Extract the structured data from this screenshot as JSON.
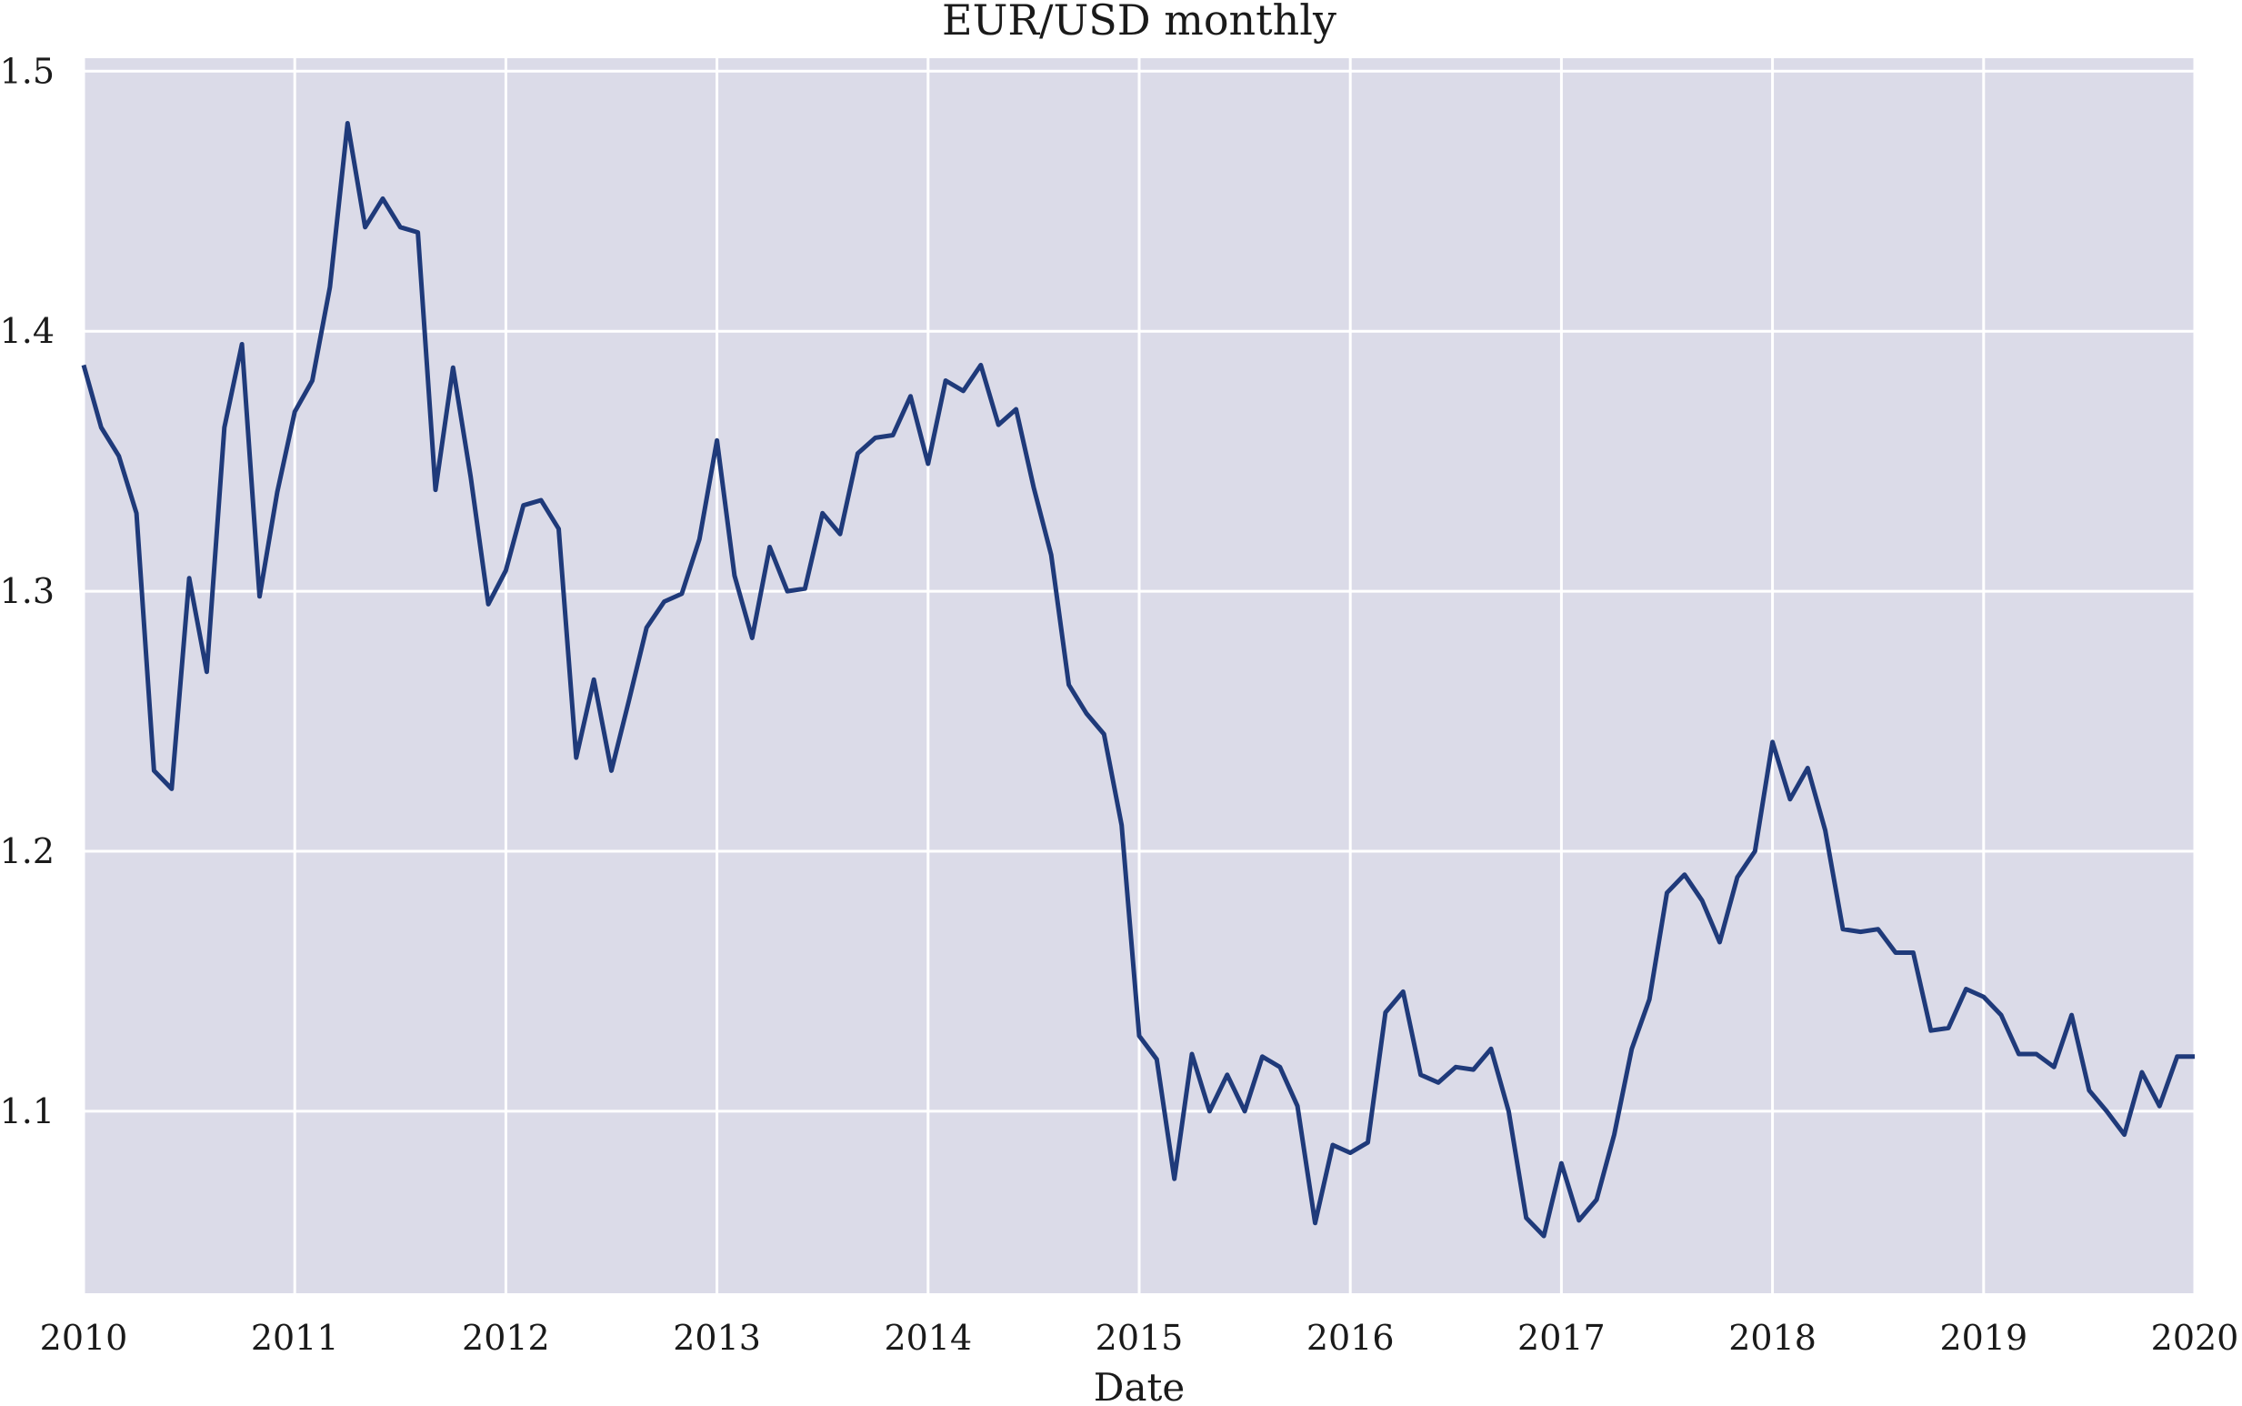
{
  "chart_data": {
    "type": "line",
    "title": "EUR/USD monthly",
    "xlabel": "Date",
    "ylabel": "",
    "grid": true,
    "legend": "none",
    "xlim": [
      2010,
      2020
    ],
    "ylim": [
      1.03,
      1.505
    ],
    "x_ticks": [
      "2010",
      "2011",
      "2012",
      "2013",
      "2014",
      "2015",
      "2016",
      "2017",
      "2018",
      "2019",
      "2020"
    ],
    "y_ticks": [
      "1.1",
      "1.2",
      "1.3",
      "1.4",
      "1.5"
    ],
    "colors": {
      "line": "#1f3a7a",
      "plot_bg": "#dbdbe8",
      "grid": "#ffffff"
    },
    "series": [
      {
        "start": "2010-01",
        "frequency": "monthly",
        "values": [
          1.387,
          1.363,
          1.352,
          1.33,
          1.231,
          1.224,
          1.305,
          1.269,
          1.363,
          1.395,
          1.298,
          1.338,
          1.369,
          1.381,
          1.417,
          1.48,
          1.44,
          1.451,
          1.44,
          1.438,
          1.339,
          1.386,
          1.344,
          1.295,
          1.308,
          1.333,
          1.335,
          1.324,
          1.236,
          1.266,
          1.231,
          1.258,
          1.286,
          1.296,
          1.299,
          1.32,
          1.358,
          1.306,
          1.282,
          1.317,
          1.3,
          1.301,
          1.33,
          1.322,
          1.353,
          1.359,
          1.36,
          1.375,
          1.349,
          1.381,
          1.377,
          1.387,
          1.364,
          1.37,
          1.34,
          1.314,
          1.264,
          1.253,
          1.245,
          1.21,
          1.129,
          1.12,
          1.074,
          1.122,
          1.1,
          1.114,
          1.1,
          1.121,
          1.117,
          1.102,
          1.057,
          1.087,
          1.084,
          1.088,
          1.138,
          1.146,
          1.114,
          1.111,
          1.117,
          1.116,
          1.124,
          1.1,
          1.059,
          1.052,
          1.08,
          1.058,
          1.066,
          1.091,
          1.124,
          1.143,
          1.184,
          1.191,
          1.181,
          1.165,
          1.19,
          1.2,
          1.242,
          1.22,
          1.232,
          1.208,
          1.17,
          1.169,
          1.17,
          1.161,
          1.161,
          1.131,
          1.132,
          1.147,
          1.144,
          1.137,
          1.122,
          1.122,
          1.117,
          1.137,
          1.108,
          1.1,
          1.091,
          1.115,
          1.102,
          1.121,
          1.121
        ]
      }
    ]
  }
}
